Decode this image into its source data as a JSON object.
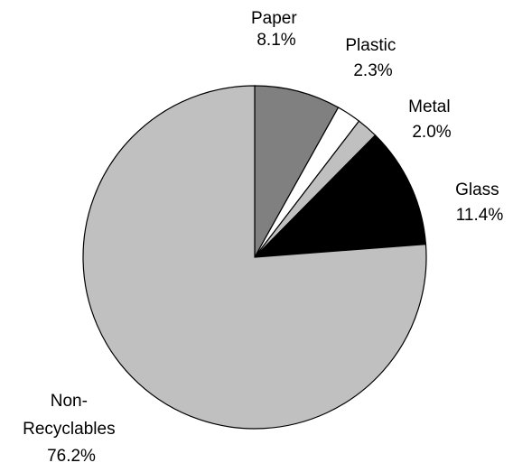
{
  "chart_data": {
    "type": "pie",
    "title": "",
    "slices": [
      {
        "name": "Paper",
        "label_lines": [
          "Paper"
        ],
        "value": 8.1,
        "value_label": "8.1%",
        "color": "#808080"
      },
      {
        "name": "Plastic",
        "label_lines": [
          "Plastic"
        ],
        "value": 2.3,
        "value_label": "2.3%",
        "color": "#ffffff"
      },
      {
        "name": "Metal",
        "label_lines": [
          "Metal"
        ],
        "value": 2.0,
        "value_label": "2.0%",
        "color": "#c0c0c0"
      },
      {
        "name": "Glass",
        "label_lines": [
          "Glass"
        ],
        "value": 11.4,
        "value_label": "11.4%",
        "color": "#000000"
      },
      {
        "name": "Non-Recyclables",
        "label_lines": [
          "Non-",
          "Recyclables"
        ],
        "value": 76.2,
        "value_label": "76.2%",
        "color": "#c0c0c0"
      }
    ]
  }
}
